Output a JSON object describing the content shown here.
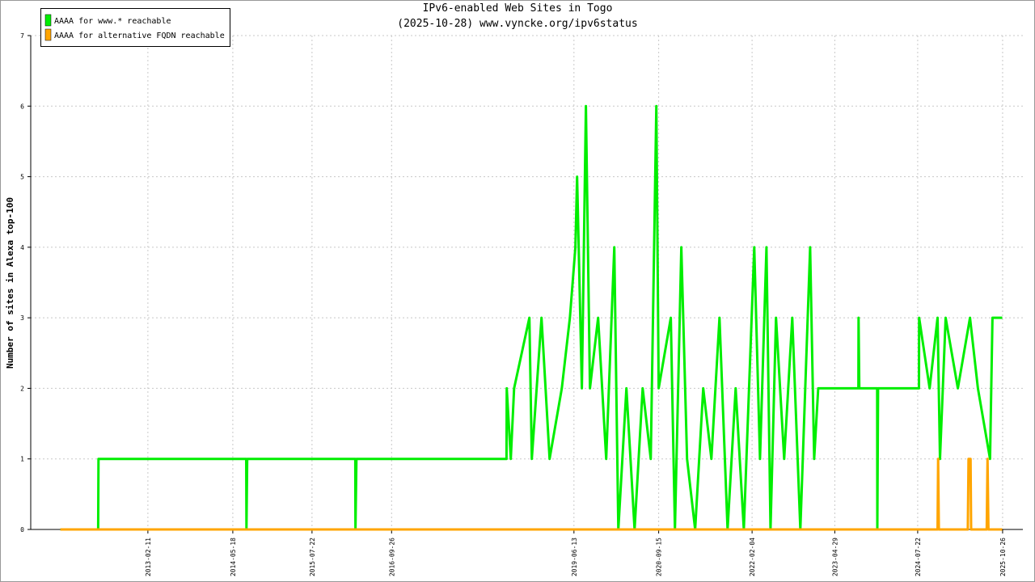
{
  "chart_data": {
    "type": "line",
    "title": "IPv6-enabled Web Sites in Togo",
    "subtitle": "(2025-10-28) www.vyncke.org/ipv6status",
    "y_label": "Number of sites in Alexa top-100",
    "xlim": [
      "2011-05-17",
      "2026-02-13"
    ],
    "xticks": [
      "2013-02-11",
      "2014-05-18",
      "2015-07-22",
      "2016-09-26",
      "2019-06-13",
      "2020-09-15",
      "2022-02-04",
      "2023-04-29",
      "2024-07-22",
      "2025-10-26"
    ],
    "ylim": [
      0,
      7
    ],
    "yticks": [
      0,
      1,
      2,
      3,
      4,
      5,
      6,
      7
    ],
    "grid": true,
    "legend": "top-left",
    "series": [
      {
        "name": "AAAA for www.* reachable",
        "color": "#00ee00",
        "x": [
          "2011-10-25",
          "2012-05-17",
          "2012-05-19",
          "2014-07-30",
          "2014-07-31",
          "2014-08-04",
          "2016-03-13",
          "2016-03-14",
          "2016-03-19",
          "2018-06-12",
          "2018-06-13",
          "2018-07-05",
          "2018-07-23",
          "2018-10-14",
          "2018-10-27",
          "2018-12-19",
          "2019-02-01",
          "2019-04-08",
          "2019-05-22",
          "2019-06-21",
          "2019-06-30",
          "2019-07-26",
          "2019-08-17",
          "2019-09-08",
          "2019-10-22",
          "2019-12-05",
          "2020-01-18",
          "2020-02-09",
          "2020-03-24",
          "2020-05-07",
          "2020-06-20",
          "2020-08-03",
          "2020-09-02",
          "2020-09-15",
          "2020-11-20",
          "2020-12-12",
          "2021-01-16",
          "2021-02-16",
          "2021-04-01",
          "2021-05-15",
          "2021-06-28",
          "2021-08-11",
          "2021-09-24",
          "2021-11-07",
          "2021-12-21",
          "2022-02-16",
          "2022-03-19",
          "2022-04-23",
          "2022-05-15",
          "2022-06-14",
          "2022-07-28",
          "2022-09-10",
          "2022-10-24",
          "2022-12-16",
          "2023-01-07",
          "2023-01-29",
          "2023-09-04",
          "2023-09-05",
          "2023-09-09",
          "2023-12-15",
          "2023-12-16",
          "2023-12-20",
          "2024-07-29",
          "2024-07-30",
          "2024-09-25",
          "2024-11-07",
          "2024-11-20",
          "2024-12-21",
          "2025-02-25",
          "2025-05-02",
          "2025-06-14",
          "2025-08-19",
          "2025-09-01",
          "2025-10-24"
        ],
        "values": [
          0,
          0,
          1,
          1,
          0,
          1,
          1,
          0,
          1,
          1,
          2,
          1,
          2,
          3,
          1,
          3,
          1,
          2,
          3,
          4,
          5,
          2,
          6,
          2,
          3,
          1,
          4,
          0,
          2,
          0,
          2,
          1,
          6,
          2,
          3,
          0,
          4,
          1,
          0,
          2,
          1,
          3,
          0,
          2,
          0,
          4,
          1,
          4,
          0,
          3,
          1,
          3,
          0,
          4,
          1,
          2,
          2,
          3,
          2,
          2,
          0,
          2,
          2,
          3,
          2,
          3,
          1,
          3,
          2,
          3,
          2,
          1,
          3,
          3
        ]
      },
      {
        "name": "AAAA for alternative FQDN reachable",
        "color": "#ffa500",
        "x": [
          "2011-10-25",
          "2024-11-07",
          "2024-11-10",
          "2024-11-14",
          "2025-04-20",
          "2025-04-24",
          "2025-05-05",
          "2025-05-08",
          "2025-08-01",
          "2025-08-05",
          "2025-08-10",
          "2025-10-24"
        ],
        "values": [
          0,
          0,
          1,
          0,
          0,
          1,
          1,
          0,
          0,
          1,
          0,
          0
        ]
      }
    ]
  }
}
